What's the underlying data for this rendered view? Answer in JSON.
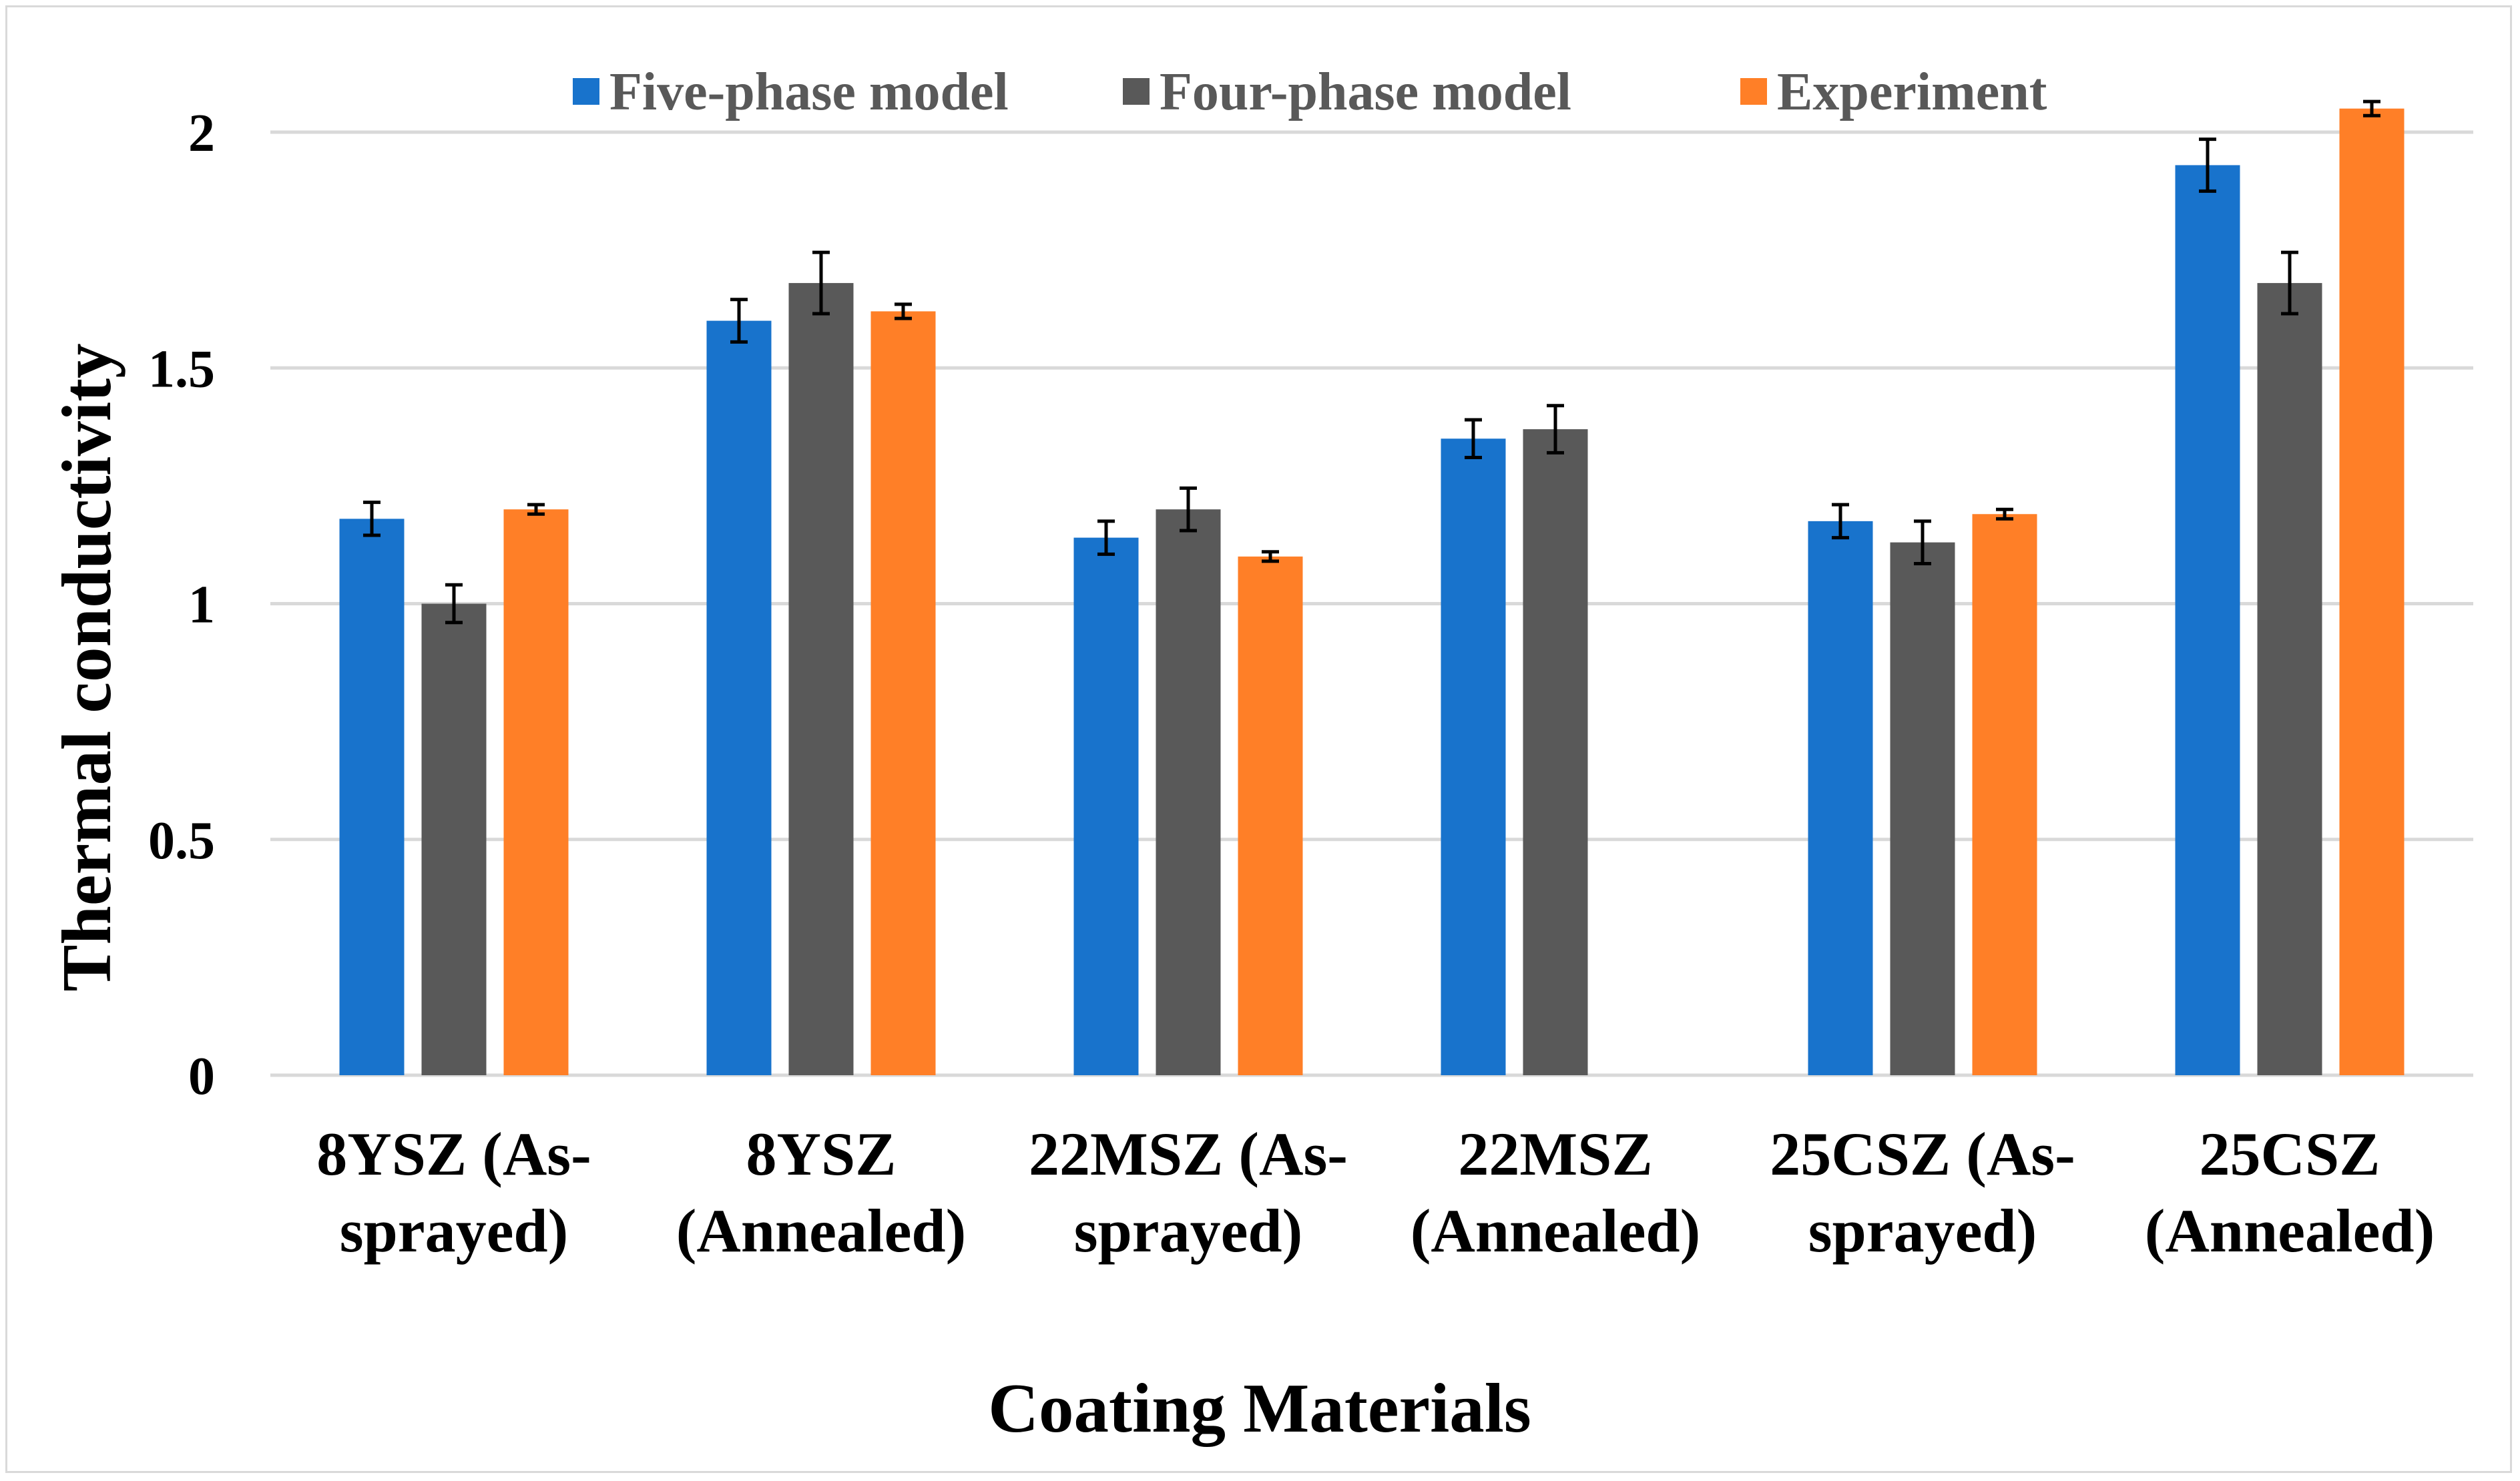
{
  "chart_data": {
    "type": "bar",
    "title": "",
    "xlabel": "Coating Materials",
    "ylabel": "Thermal conductivity",
    "ylim": [
      0,
      2
    ],
    "yticks": [
      "0",
      "0.5",
      "1",
      "1.5",
      "2"
    ],
    "ytick_values": [
      0,
      0.5,
      1,
      1.5,
      2
    ],
    "grid": true,
    "legend_position": "top",
    "categories": [
      [
        "8YSZ (As-",
        "sprayed)"
      ],
      [
        "8YSZ",
        "(Annealed)"
      ],
      [
        "22MSZ (As-",
        "sprayed)"
      ],
      [
        "22MSZ",
        "(Annealed)"
      ],
      [
        "25CSZ (As-",
        "sprayed)"
      ],
      [
        "25CSZ",
        "(Annealed)"
      ]
    ],
    "series": [
      {
        "name": "Five-phase model",
        "color": "#1873cc",
        "values": [
          1.18,
          1.6,
          1.14,
          1.35,
          1.175,
          1.93
        ],
        "errors": [
          0.035,
          0.045,
          0.035,
          0.04,
          0.035,
          0.055
        ]
      },
      {
        "name": "Four-phase model",
        "color": "#595959",
        "values": [
          1.0,
          1.68,
          1.2,
          1.37,
          1.13,
          1.68
        ],
        "errors": [
          0.04,
          0.065,
          0.045,
          0.05,
          0.045,
          0.065
        ]
      },
      {
        "name": "Experiment",
        "color": "#ff7f27",
        "values": [
          1.2,
          1.62,
          1.1,
          null,
          1.19,
          2.05
        ],
        "errors": [
          0.01,
          0.015,
          0.01,
          null,
          0.01,
          0.015
        ]
      }
    ]
  }
}
